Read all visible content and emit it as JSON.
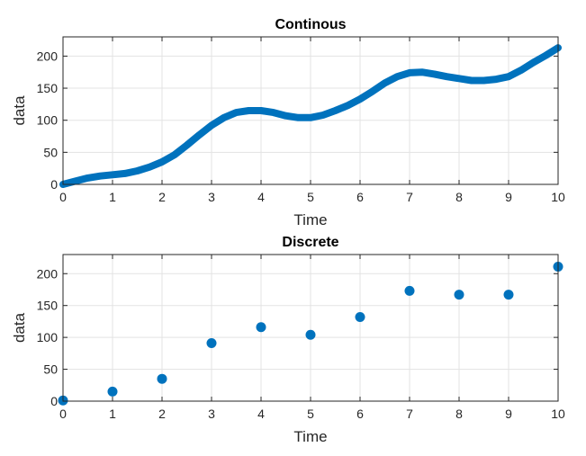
{
  "chart_data": [
    {
      "type": "line",
      "title": "Continous",
      "xlabel": "Time",
      "ylabel": "data",
      "xlim": [
        0,
        10
      ],
      "ylim": [
        0,
        230
      ],
      "xticks": [
        0,
        1,
        2,
        3,
        4,
        5,
        6,
        7,
        8,
        9,
        10
      ],
      "yticks": [
        0,
        50,
        100,
        150,
        200
      ],
      "grid": true,
      "color": "#0072BD",
      "series": [
        {
          "x": [
            0,
            0.25,
            0.5,
            0.75,
            1,
            1.25,
            1.5,
            1.75,
            2,
            2.25,
            2.5,
            2.75,
            3,
            3.25,
            3.5,
            3.75,
            4,
            4.25,
            4.5,
            4.75,
            5,
            5.25,
            5.5,
            5.75,
            6,
            6.25,
            6.5,
            6.75,
            7,
            7.25,
            7.5,
            7.75,
            8,
            8.25,
            8.5,
            8.75,
            9,
            9.25,
            9.5,
            9.75,
            10
          ],
          "y": [
            0,
            5,
            10,
            13,
            15,
            17,
            21,
            27,
            35,
            46,
            61,
            77,
            92,
            104,
            112,
            115,
            115,
            112,
            107,
            104,
            104,
            108,
            115,
            123,
            133,
            145,
            158,
            168,
            174,
            175,
            172,
            168,
            165,
            162,
            162,
            164,
            168,
            178,
            190,
            201,
            213
          ]
        }
      ]
    },
    {
      "type": "scatter",
      "title": "Discrete",
      "xlabel": "Time",
      "ylabel": "data",
      "xlim": [
        0,
        10
      ],
      "ylim": [
        0,
        230
      ],
      "xticks": [
        0,
        1,
        2,
        3,
        4,
        5,
        6,
        7,
        8,
        9,
        10
      ],
      "yticks": [
        0,
        50,
        100,
        150,
        200
      ],
      "grid": true,
      "color": "#0072BD",
      "series": [
        {
          "x": [
            0,
            1,
            2,
            3,
            4,
            5,
            6,
            7,
            8,
            9,
            10
          ],
          "y": [
            1,
            15,
            35,
            91,
            116,
            104,
            132,
            173,
            167,
            167,
            211
          ]
        }
      ]
    }
  ]
}
